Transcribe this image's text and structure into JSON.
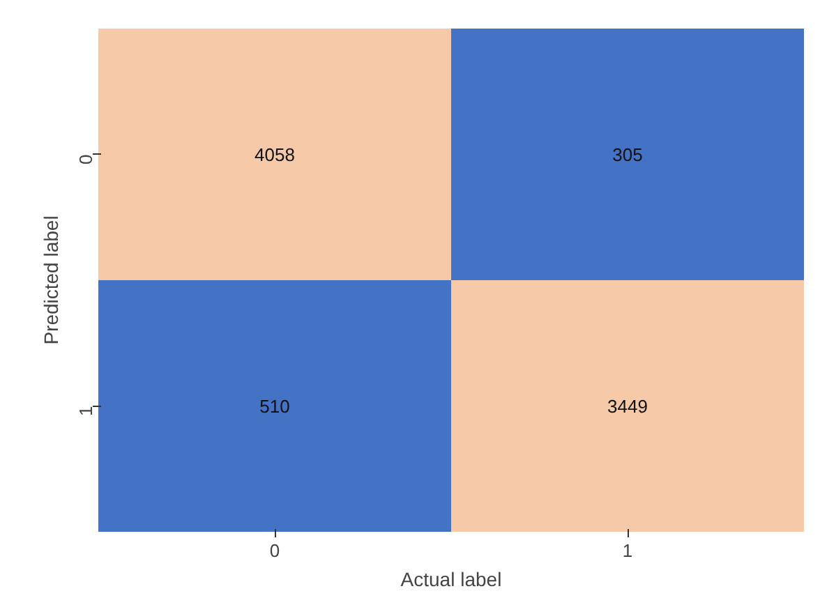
{
  "chart_data": {
    "type": "heatmap",
    "xlabel": "Actual label",
    "ylabel": "Predicted label",
    "categories": [
      "0",
      "1"
    ],
    "y_categories": [
      "0",
      "1"
    ],
    "cells": [
      [
        4058,
        305
      ],
      [
        510,
        3449
      ]
    ],
    "colors": [
      "#f6caa9",
      "#4472c4",
      "#4472c4",
      "#f6caa9"
    ],
    "data_labels": true
  }
}
